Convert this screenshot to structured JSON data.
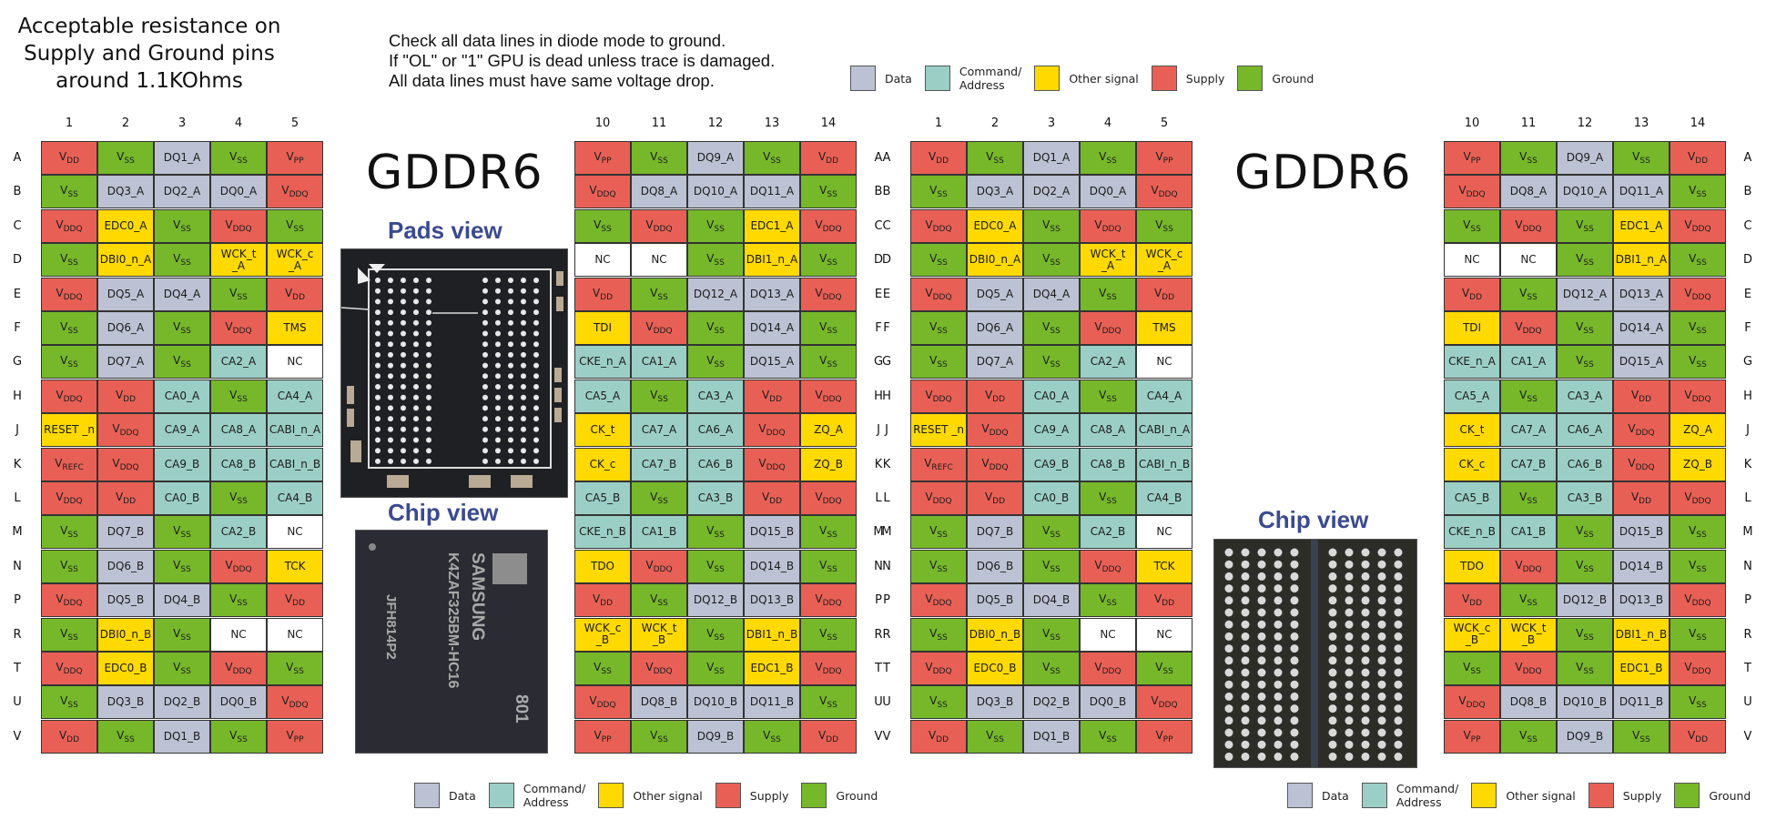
{
  "notes": {
    "resistance": [
      "Acceptable resistance on",
      "Supply and Ground pins",
      "around  1.1KOhms"
    ],
    "diode_check": [
      "Check all data lines in diode mode to ground.",
      "If \"OL\" or \"1\" GPU is dead unless trace is damaged.",
      "All data lines must have same voltage drop."
    ]
  },
  "legend": [
    {
      "label": "Data",
      "color": "#bcc2d3"
    },
    {
      "label": "Command/ Address",
      "color": "#9bcfc6"
    },
    {
      "label": "Other signal",
      "color": "#ffd900"
    },
    {
      "label": "Supply",
      "color": "#e86055"
    },
    {
      "label": "Ground",
      "color": "#76b82a"
    }
  ],
  "colors": {
    "D": "#bcc2d3",
    "C": "#9bcfc6",
    "O": "#ffd900",
    "S": "#e86055",
    "G": "#76b82a",
    "N": "#ffffff"
  },
  "titles": {
    "left": "GDDR6",
    "right": "GDDR6",
    "pads_view": "Pads view",
    "chip_view_left": "Chip view",
    "chip_view_right": "Chip view"
  },
  "chip_marking": {
    "brand": "SAMSUNG",
    "part": "K4ZAF325BM-HC16",
    "code": "801",
    "lot": "JFH814P2"
  },
  "row_labels": [
    "A",
    "B",
    "C",
    "D",
    "E",
    "F",
    "G",
    "H",
    "J",
    "K",
    "L",
    "M",
    "N",
    "P",
    "R",
    "T",
    "U",
    "V"
  ],
  "left_columns": [
    "1",
    "2",
    "3",
    "4",
    "5"
  ],
  "right_columns": [
    "10",
    "11",
    "12",
    "13",
    "14"
  ],
  "left_block": [
    [
      [
        "V|DD",
        "S"
      ],
      [
        "V|SS",
        "G"
      ],
      [
        "DQ1_A",
        "D"
      ],
      [
        "V|SS",
        "G"
      ],
      [
        "V|PP",
        "S"
      ]
    ],
    [
      [
        "V|SS",
        "G"
      ],
      [
        "DQ3_A",
        "D"
      ],
      [
        "DQ2_A",
        "D"
      ],
      [
        "DQ0_A",
        "D"
      ],
      [
        "V|DDQ",
        "S"
      ]
    ],
    [
      [
        "V|DDQ",
        "S"
      ],
      [
        "EDC0_A",
        "O"
      ],
      [
        "V|SS",
        "G"
      ],
      [
        "V|DDQ",
        "S"
      ],
      [
        "V|SS",
        "G"
      ]
    ],
    [
      [
        "V|SS",
        "G"
      ],
      [
        "DBI0_n_A",
        "O"
      ],
      [
        "V|SS",
        "G"
      ],
      [
        "WCK_t _A",
        "O"
      ],
      [
        "WCK_c _A",
        "O"
      ]
    ],
    [
      [
        "V|DDQ",
        "S"
      ],
      [
        "DQ5_A",
        "D"
      ],
      [
        "DQ4_A",
        "D"
      ],
      [
        "V|SS",
        "G"
      ],
      [
        "V|DD",
        "S"
      ]
    ],
    [
      [
        "V|SS",
        "G"
      ],
      [
        "DQ6_A",
        "D"
      ],
      [
        "V|SS",
        "G"
      ],
      [
        "V|DDQ",
        "S"
      ],
      [
        "TMS",
        "O"
      ]
    ],
    [
      [
        "V|SS",
        "G"
      ],
      [
        "DQ7_A",
        "D"
      ],
      [
        "V|SS",
        "G"
      ],
      [
        "CA2_A",
        "C"
      ],
      [
        "NC",
        "N"
      ]
    ],
    [
      [
        "V|DDQ",
        "S"
      ],
      [
        "V|DD",
        "S"
      ],
      [
        "CA0_A",
        "C"
      ],
      [
        "V|SS",
        "G"
      ],
      [
        "CA4_A",
        "C"
      ]
    ],
    [
      [
        "RESET _n",
        "O"
      ],
      [
        "V|DDQ",
        "S"
      ],
      [
        "CA9_A",
        "C"
      ],
      [
        "CA8_A",
        "C"
      ],
      [
        "CABI_n_A",
        "C"
      ]
    ],
    [
      [
        "V|REFC",
        "S"
      ],
      [
        "V|DDQ",
        "S"
      ],
      [
        "CA9_B",
        "C"
      ],
      [
        "CA8_B",
        "C"
      ],
      [
        "CABI_n_B",
        "C"
      ]
    ],
    [
      [
        "V|DDQ",
        "S"
      ],
      [
        "V|DD",
        "S"
      ],
      [
        "CA0_B",
        "C"
      ],
      [
        "V|SS",
        "G"
      ],
      [
        "CA4_B",
        "C"
      ]
    ],
    [
      [
        "V|SS",
        "G"
      ],
      [
        "DQ7_B",
        "D"
      ],
      [
        "V|SS",
        "G"
      ],
      [
        "CA2_B",
        "C"
      ],
      [
        "NC",
        "N"
      ]
    ],
    [
      [
        "V|SS",
        "G"
      ],
      [
        "DQ6_B",
        "D"
      ],
      [
        "V|SS",
        "G"
      ],
      [
        "V|DDQ",
        "S"
      ],
      [
        "TCK",
        "O"
      ]
    ],
    [
      [
        "V|DDQ",
        "S"
      ],
      [
        "DQ5_B",
        "D"
      ],
      [
        "DQ4_B",
        "D"
      ],
      [
        "V|SS",
        "G"
      ],
      [
        "V|DD",
        "S"
      ]
    ],
    [
      [
        "V|SS",
        "G"
      ],
      [
        "DBI0_n_B",
        "O"
      ],
      [
        "V|SS",
        "G"
      ],
      [
        "NC",
        "N"
      ],
      [
        "NC",
        "N"
      ]
    ],
    [
      [
        "V|DDQ",
        "S"
      ],
      [
        "EDC0_B",
        "O"
      ],
      [
        "V|SS",
        "G"
      ],
      [
        "V|DDQ",
        "S"
      ],
      [
        "V|SS",
        "G"
      ]
    ],
    [
      [
        "V|SS",
        "G"
      ],
      [
        "DQ3_B",
        "D"
      ],
      [
        "DQ2_B",
        "D"
      ],
      [
        "DQ0_B",
        "D"
      ],
      [
        "V|DDQ",
        "S"
      ]
    ],
    [
      [
        "V|DD",
        "S"
      ],
      [
        "V|SS",
        "G"
      ],
      [
        "DQ1_B",
        "D"
      ],
      [
        "V|SS",
        "G"
      ],
      [
        "V|PP",
        "S"
      ]
    ]
  ],
  "right_block": [
    [
      [
        "V|PP",
        "S"
      ],
      [
        "V|SS",
        "G"
      ],
      [
        "DQ9_A",
        "D"
      ],
      [
        "V|SS",
        "G"
      ],
      [
        "V|DD",
        "S"
      ]
    ],
    [
      [
        "V|DDQ",
        "S"
      ],
      [
        "DQ8_A",
        "D"
      ],
      [
        "DQ10_A",
        "D"
      ],
      [
        "DQ11_A",
        "D"
      ],
      [
        "V|SS",
        "G"
      ]
    ],
    [
      [
        "V|SS",
        "G"
      ],
      [
        "V|DDQ",
        "S"
      ],
      [
        "V|SS",
        "G"
      ],
      [
        "EDC1_A",
        "O"
      ],
      [
        "V|DDQ",
        "S"
      ]
    ],
    [
      [
        "NC",
        "N"
      ],
      [
        "NC",
        "N"
      ],
      [
        "V|SS",
        "G"
      ],
      [
        "DBI1_n_A",
        "O"
      ],
      [
        "V|SS",
        "G"
      ]
    ],
    [
      [
        "V|DD",
        "S"
      ],
      [
        "V|SS",
        "G"
      ],
      [
        "DQ12_A",
        "D"
      ],
      [
        "DQ13_A",
        "D"
      ],
      [
        "V|DDQ",
        "S"
      ]
    ],
    [
      [
        "TDI",
        "O"
      ],
      [
        "V|DDQ",
        "S"
      ],
      [
        "V|SS",
        "G"
      ],
      [
        "DQ14_A",
        "D"
      ],
      [
        "V|SS",
        "G"
      ]
    ],
    [
      [
        "CKE_n_A",
        "C"
      ],
      [
        "CA1_A",
        "C"
      ],
      [
        "V|SS",
        "G"
      ],
      [
        "DQ15_A",
        "D"
      ],
      [
        "V|SS",
        "G"
      ]
    ],
    [
      [
        "CA5_A",
        "C"
      ],
      [
        "V|SS",
        "G"
      ],
      [
        "CA3_A",
        "C"
      ],
      [
        "V|DD",
        "S"
      ],
      [
        "V|DDQ",
        "S"
      ]
    ],
    [
      [
        "CK_t",
        "O"
      ],
      [
        "CA7_A",
        "C"
      ],
      [
        "CA6_A",
        "C"
      ],
      [
        "V|DDQ",
        "S"
      ],
      [
        "ZQ_A",
        "O"
      ]
    ],
    [
      [
        "CK_c",
        "O"
      ],
      [
        "CA7_B",
        "C"
      ],
      [
        "CA6_B",
        "C"
      ],
      [
        "V|DDQ",
        "S"
      ],
      [
        "ZQ_B",
        "O"
      ]
    ],
    [
      [
        "CA5_B",
        "C"
      ],
      [
        "V|SS",
        "G"
      ],
      [
        "CA3_B",
        "C"
      ],
      [
        "V|DD",
        "S"
      ],
      [
        "V|DDQ",
        "S"
      ]
    ],
    [
      [
        "CKE_n_B",
        "C"
      ],
      [
        "CA1_B",
        "C"
      ],
      [
        "V|SS",
        "G"
      ],
      [
        "DQ15_B",
        "D"
      ],
      [
        "V|SS",
        "G"
      ]
    ],
    [
      [
        "TDO",
        "O"
      ],
      [
        "V|DDQ",
        "S"
      ],
      [
        "V|SS",
        "G"
      ],
      [
        "DQ14_B",
        "D"
      ],
      [
        "V|SS",
        "G"
      ]
    ],
    [
      [
        "V|DD",
        "S"
      ],
      [
        "V|SS",
        "G"
      ],
      [
        "DQ12_B",
        "D"
      ],
      [
        "DQ13_B",
        "D"
      ],
      [
        "V|DDQ",
        "S"
      ]
    ],
    [
      [
        "WCK_c _B",
        "O"
      ],
      [
        "WCK_t _B",
        "O"
      ],
      [
        "V|SS",
        "G"
      ],
      [
        "DBI1_n_B",
        "O"
      ],
      [
        "V|SS",
        "G"
      ]
    ],
    [
      [
        "V|SS",
        "G"
      ],
      [
        "V|DDQ",
        "S"
      ],
      [
        "V|SS",
        "G"
      ],
      [
        "EDC1_B",
        "O"
      ],
      [
        "V|DDQ",
        "S"
      ]
    ],
    [
      [
        "V|DDQ",
        "S"
      ],
      [
        "DQ8_B",
        "D"
      ],
      [
        "DQ10_B",
        "D"
      ],
      [
        "DQ11_B",
        "D"
      ],
      [
        "V|SS",
        "G"
      ]
    ],
    [
      [
        "V|PP",
        "S"
      ],
      [
        "V|SS",
        "G"
      ],
      [
        "DQ9_B",
        "D"
      ],
      [
        "V|SS",
        "G"
      ],
      [
        "V|DD",
        "S"
      ]
    ]
  ]
}
